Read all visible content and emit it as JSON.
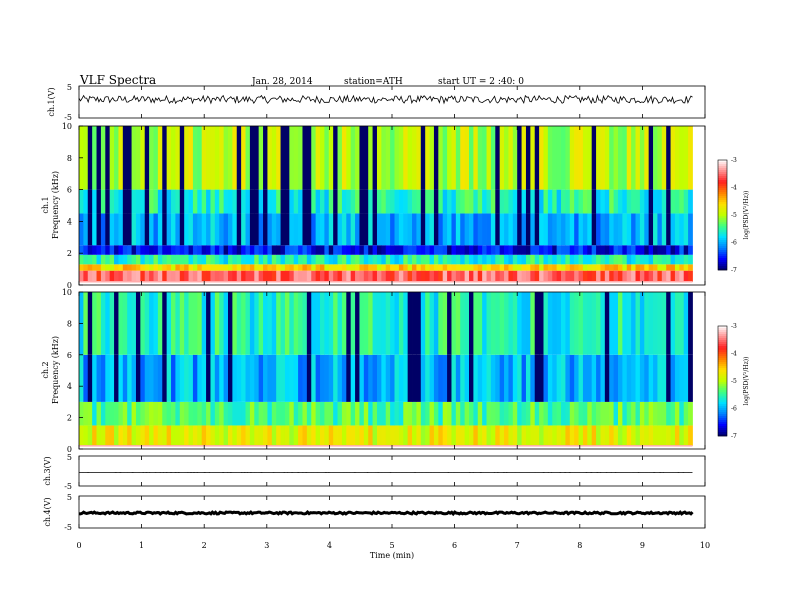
{
  "header": {
    "title": "VLF  Spectra",
    "date": "Jan. 28, 2014",
    "station": "station=ATH",
    "start": "start  UT  =   2  :40: 0"
  },
  "chart_data": [
    {
      "type": "line",
      "panel": "ch1-waveform",
      "ylabel": "ch.1(V)",
      "ylim": [
        -5,
        5
      ],
      "yticks": [
        "5",
        "-5"
      ],
      "baseline": 0.8,
      "noise_amplitude": 1.2
    },
    {
      "type": "heatmap",
      "panel": "ch1-spectrogram",
      "ylabel_channel": "ch.1",
      "ylabel": "Frequency  (kHz)",
      "ylim": [
        0,
        10
      ],
      "yticks": [
        "0",
        "2",
        "4",
        "6",
        "8",
        "10"
      ],
      "colorbar": {
        "label": "log(PSD(V²/Hz))",
        "range": [
          -7,
          -3
        ],
        "ticks": [
          "-3",
          "-4",
          "-5",
          "-6",
          "-7"
        ],
        "colors": [
          "#000066",
          "#0000ff",
          "#0080ff",
          "#00e0ff",
          "#40ff80",
          "#c0ff00",
          "#ffe000",
          "#ff8000",
          "#ff2020",
          "#ff9090",
          "#ffffff"
        ]
      },
      "bands_khz": [
        {
          "f_low": 0.2,
          "f_high": 0.9,
          "level": -3.6
        },
        {
          "f_low": 0.9,
          "f_high": 1.3,
          "level": -4.6
        },
        {
          "f_low": 1.3,
          "f_high": 1.9,
          "level": -5.6
        },
        {
          "f_low": 1.9,
          "f_high": 2.5,
          "level": -6.6
        },
        {
          "f_low": 2.5,
          "f_high": 4.5,
          "level": -6.0
        },
        {
          "f_low": 4.5,
          "f_high": 6.0,
          "level": -5.6
        },
        {
          "f_low": 6.0,
          "f_high": 10.0,
          "level": -5.0
        }
      ]
    },
    {
      "type": "heatmap",
      "panel": "ch2-spectrogram",
      "ylabel_channel": "ch.2",
      "ylabel": "Frequency  (kHz)",
      "ylim": [
        0,
        10
      ],
      "yticks": [
        "0",
        "2",
        "4",
        "6",
        "8",
        "10"
      ],
      "colorbar": {
        "label": "log(PSD(V²/Hz))",
        "range": [
          -7,
          -3
        ],
        "ticks": [
          "-3",
          "-4",
          "-5",
          "-6",
          "-7"
        ]
      },
      "bands_khz": [
        {
          "f_low": 0.2,
          "f_high": 1.5,
          "level": -4.8
        },
        {
          "f_low": 1.5,
          "f_high": 3.0,
          "level": -5.4
        },
        {
          "f_low": 3.0,
          "f_high": 6.0,
          "level": -6.0
        },
        {
          "f_low": 6.0,
          "f_high": 10.0,
          "level": -5.6
        }
      ]
    },
    {
      "type": "line",
      "panel": "ch3-waveform",
      "ylabel": "ch.3(V)",
      "ylim": [
        -5,
        5
      ],
      "yticks": [
        "5",
        "-5"
      ],
      "baseline": -0.5,
      "noise_amplitude": 0.05
    },
    {
      "type": "line",
      "panel": "ch4-waveform",
      "ylabel": "ch.4(V)",
      "ylim": [
        -5,
        5
      ],
      "yticks": [
        "5",
        "-5"
      ],
      "baseline": -0.3,
      "noise_amplitude": 0.3
    }
  ],
  "xaxis": {
    "label": "Time  (min)",
    "range": [
      0,
      10
    ],
    "data_end": 9.8,
    "ticks": [
      "0",
      "1",
      "2",
      "3",
      "4",
      "5",
      "6",
      "7",
      "8",
      "9",
      "10"
    ]
  }
}
